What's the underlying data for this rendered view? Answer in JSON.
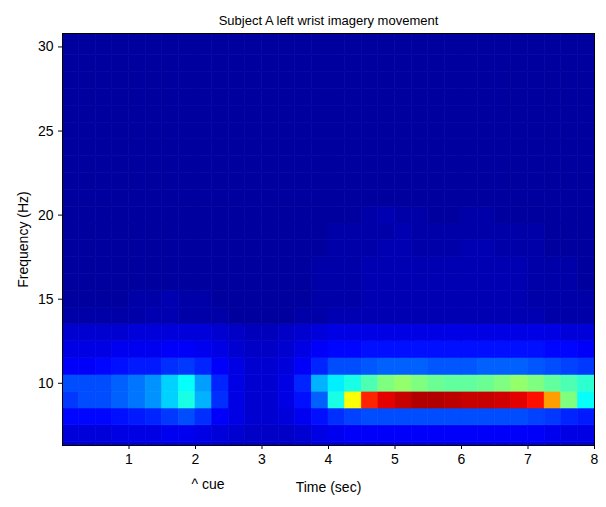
{
  "chart_data": {
    "type": "heatmap",
    "title": "Subject A left wrist imagery movement",
    "x_label": "Time (sec)",
    "y_label": "Frequency (Hz)",
    "xlim": [
      0,
      8
    ],
    "ylim": [
      6.3,
      30.8
    ],
    "xticks": [
      1,
      2,
      3,
      4,
      5,
      6,
      7,
      8
    ],
    "yticks": [
      10,
      15,
      20,
      25,
      30
    ],
    "grid": false,
    "color_range": [
      0,
      1
    ],
    "annotations": [
      {
        "text": "^ cue",
        "x": 2
      }
    ],
    "x": [
      0.125,
      0.375,
      0.625,
      0.875,
      1.125,
      1.375,
      1.625,
      1.875,
      2.125,
      2.375,
      2.625,
      2.875,
      3.125,
      3.375,
      3.625,
      3.875,
      4.125,
      4.375,
      4.625,
      4.875,
      5.125,
      5.375,
      5.625,
      5.875,
      6.125,
      6.375,
      6.625,
      6.875,
      7.125,
      7.375,
      7.625,
      7.875
    ],
    "y": [
      6,
      7,
      8,
      9,
      10,
      11,
      12,
      13,
      14,
      15,
      16,
      17,
      18,
      19,
      20,
      21,
      22,
      23,
      24,
      25,
      26,
      27,
      28,
      29,
      30,
      31
    ],
    "cells": [
      [
        0.07,
        0.07,
        0.07,
        0.07,
        0.08,
        0.08,
        0.08,
        0.08,
        0.08,
        0.07,
        0.06,
        0.06,
        0.06,
        0.06,
        0.07,
        0.08,
        0.08,
        0.09,
        0.09,
        0.09,
        0.09,
        0.09,
        0.09,
        0.09,
        0.09,
        0.09,
        0.09,
        0.09,
        0.09,
        0.08,
        0.08,
        0.08
      ],
      [
        0.09,
        0.09,
        0.09,
        0.1,
        0.1,
        0.1,
        0.11,
        0.11,
        0.1,
        0.09,
        0.08,
        0.07,
        0.07,
        0.07,
        0.08,
        0.1,
        0.11,
        0.12,
        0.12,
        0.12,
        0.12,
        0.12,
        0.12,
        0.12,
        0.12,
        0.12,
        0.12,
        0.12,
        0.12,
        0.11,
        0.1,
        0.1
      ],
      [
        0.13,
        0.13,
        0.13,
        0.14,
        0.15,
        0.16,
        0.18,
        0.2,
        0.17,
        0.12,
        0.1,
        0.08,
        0.08,
        0.09,
        0.11,
        0.14,
        0.17,
        0.19,
        0.2,
        0.2,
        0.2,
        0.2,
        0.2,
        0.2,
        0.2,
        0.2,
        0.2,
        0.2,
        0.19,
        0.18,
        0.16,
        0.15
      ],
      [
        0.18,
        0.2,
        0.2,
        0.22,
        0.24,
        0.27,
        0.33,
        0.4,
        0.3,
        0.17,
        0.1,
        0.08,
        0.08,
        0.1,
        0.14,
        0.22,
        0.4,
        0.62,
        0.84,
        0.9,
        0.93,
        0.95,
        0.95,
        0.94,
        0.93,
        0.93,
        0.92,
        0.9,
        0.86,
        0.72,
        0.5,
        0.38
      ],
      [
        0.2,
        0.2,
        0.2,
        0.22,
        0.24,
        0.27,
        0.33,
        0.38,
        0.28,
        0.16,
        0.1,
        0.08,
        0.08,
        0.1,
        0.16,
        0.3,
        0.36,
        0.4,
        0.45,
        0.5,
        0.52,
        0.5,
        0.48,
        0.47,
        0.47,
        0.48,
        0.5,
        0.52,
        0.5,
        0.47,
        0.45,
        0.42
      ],
      [
        0.12,
        0.12,
        0.13,
        0.14,
        0.15,
        0.15,
        0.17,
        0.18,
        0.16,
        0.12,
        0.1,
        0.08,
        0.08,
        0.09,
        0.12,
        0.16,
        0.2,
        0.2,
        0.21,
        0.22,
        0.22,
        0.22,
        0.21,
        0.21,
        0.21,
        0.22,
        0.22,
        0.22,
        0.21,
        0.2,
        0.19,
        0.18
      ],
      [
        0.1,
        0.1,
        0.1,
        0.11,
        0.11,
        0.11,
        0.12,
        0.12,
        0.11,
        0.1,
        0.08,
        0.07,
        0.07,
        0.08,
        0.1,
        0.12,
        0.13,
        0.13,
        0.14,
        0.14,
        0.14,
        0.14,
        0.14,
        0.14,
        0.14,
        0.14,
        0.14,
        0.14,
        0.14,
        0.13,
        0.13,
        0.12
      ],
      [
        0.08,
        0.08,
        0.08,
        0.08,
        0.09,
        0.09,
        0.09,
        0.09,
        0.09,
        0.08,
        0.07,
        0.06,
        0.06,
        0.07,
        0.08,
        0.09,
        0.1,
        0.1,
        0.1,
        0.1,
        0.1,
        0.1,
        0.1,
        0.1,
        0.1,
        0.1,
        0.1,
        0.1,
        0.1,
        0.1,
        0.09,
        0.09
      ],
      [
        0.04,
        0.04,
        0.04,
        0.04,
        0.04,
        0.05,
        0.05,
        0.04,
        0.04,
        0.04,
        0.03,
        0.03,
        0.03,
        0.03,
        0.04,
        0.04,
        0.05,
        0.05,
        0.05,
        0.05,
        0.05,
        0.05,
        0.05,
        0.05,
        0.05,
        0.05,
        0.05,
        0.05,
        0.05,
        0.04,
        0.04,
        0.04
      ],
      [
        0.03,
        0.03,
        0.03,
        0.03,
        0.04,
        0.04,
        0.05,
        0.04,
        0.04,
        0.03,
        0.03,
        0.03,
        0.03,
        0.03,
        0.03,
        0.04,
        0.04,
        0.04,
        0.05,
        0.05,
        0.05,
        0.05,
        0.05,
        0.05,
        0.05,
        0.05,
        0.05,
        0.05,
        0.04,
        0.04,
        0.04,
        0.04
      ],
      [
        0.03,
        0.03,
        0.03,
        0.03,
        0.03,
        0.03,
        0.03,
        0.03,
        0.03,
        0.03,
        0.03,
        0.03,
        0.03,
        0.03,
        0.03,
        0.04,
        0.04,
        0.04,
        0.05,
        0.05,
        0.05,
        0.05,
        0.05,
        0.05,
        0.05,
        0.05,
        0.05,
        0.05,
        0.04,
        0.04,
        0.04,
        0.03
      ],
      [
        0.03,
        0.03,
        0.03,
        0.03,
        0.03,
        0.03,
        0.03,
        0.03,
        0.03,
        0.03,
        0.03,
        0.03,
        0.03,
        0.03,
        0.03,
        0.04,
        0.04,
        0.04,
        0.05,
        0.05,
        0.05,
        0.05,
        0.05,
        0.05,
        0.05,
        0.05,
        0.05,
        0.05,
        0.04,
        0.04,
        0.04,
        0.03
      ],
      [
        0.03,
        0.03,
        0.03,
        0.03,
        0.03,
        0.03,
        0.03,
        0.03,
        0.03,
        0.03,
        0.03,
        0.03,
        0.03,
        0.03,
        0.03,
        0.03,
        0.04,
        0.04,
        0.04,
        0.05,
        0.05,
        0.04,
        0.04,
        0.04,
        0.05,
        0.05,
        0.04,
        0.04,
        0.04,
        0.03,
        0.03,
        0.03
      ],
      [
        0.03,
        0.03,
        0.03,
        0.03,
        0.03,
        0.03,
        0.03,
        0.03,
        0.03,
        0.03,
        0.03,
        0.03,
        0.03,
        0.03,
        0.03,
        0.03,
        0.04,
        0.04,
        0.04,
        0.04,
        0.05,
        0.04,
        0.04,
        0.04,
        0.04,
        0.04,
        0.04,
        0.04,
        0.04,
        0.03,
        0.03,
        0.03
      ],
      [
        0.03,
        0.03,
        0.03,
        0.03,
        0.03,
        0.03,
        0.03,
        0.03,
        0.03,
        0.03,
        0.03,
        0.03,
        0.03,
        0.03,
        0.03,
        0.03,
        0.03,
        0.03,
        0.04,
        0.05,
        0.04,
        0.04,
        0.03,
        0.03,
        0.04,
        0.04,
        0.03,
        0.03,
        0.03,
        0.03,
        0.03,
        0.03
      ],
      [
        0.03,
        0.03,
        0.03,
        0.03,
        0.03,
        0.03,
        0.03,
        0.03,
        0.03,
        0.03,
        0.03,
        0.03,
        0.03,
        0.03,
        0.03,
        0.03,
        0.03,
        0.03,
        0.03,
        0.03,
        0.03,
        0.03,
        0.03,
        0.03,
        0.03,
        0.03,
        0.03,
        0.03,
        0.03,
        0.03,
        0.03,
        0.03
      ],
      [
        0.03,
        0.03,
        0.03,
        0.03,
        0.03,
        0.03,
        0.03,
        0.03,
        0.03,
        0.03,
        0.03,
        0.03,
        0.03,
        0.03,
        0.03,
        0.03,
        0.03,
        0.03,
        0.03,
        0.03,
        0.03,
        0.03,
        0.03,
        0.03,
        0.03,
        0.03,
        0.03,
        0.03,
        0.03,
        0.03,
        0.03,
        0.03
      ],
      [
        0.03,
        0.03,
        0.03,
        0.03,
        0.03,
        0.03,
        0.03,
        0.03,
        0.03,
        0.03,
        0.03,
        0.03,
        0.03,
        0.03,
        0.03,
        0.03,
        0.03,
        0.03,
        0.03,
        0.03,
        0.03,
        0.03,
        0.03,
        0.03,
        0.03,
        0.03,
        0.03,
        0.03,
        0.03,
        0.03,
        0.03,
        0.03
      ],
      [
        0.03,
        0.03,
        0.03,
        0.03,
        0.03,
        0.03,
        0.03,
        0.03,
        0.03,
        0.03,
        0.03,
        0.03,
        0.03,
        0.03,
        0.03,
        0.03,
        0.03,
        0.03,
        0.03,
        0.03,
        0.03,
        0.03,
        0.03,
        0.03,
        0.03,
        0.03,
        0.03,
        0.03,
        0.03,
        0.03,
        0.03,
        0.03
      ],
      [
        0.03,
        0.03,
        0.03,
        0.03,
        0.03,
        0.03,
        0.03,
        0.03,
        0.03,
        0.03,
        0.03,
        0.03,
        0.03,
        0.03,
        0.03,
        0.03,
        0.03,
        0.03,
        0.03,
        0.03,
        0.03,
        0.03,
        0.03,
        0.03,
        0.03,
        0.03,
        0.03,
        0.03,
        0.03,
        0.03,
        0.03,
        0.03
      ],
      [
        0.03,
        0.03,
        0.03,
        0.03,
        0.03,
        0.03,
        0.03,
        0.03,
        0.03,
        0.03,
        0.03,
        0.03,
        0.03,
        0.03,
        0.03,
        0.03,
        0.03,
        0.03,
        0.03,
        0.03,
        0.03,
        0.03,
        0.03,
        0.03,
        0.03,
        0.03,
        0.03,
        0.03,
        0.03,
        0.03,
        0.03,
        0.03
      ],
      [
        0.03,
        0.03,
        0.03,
        0.03,
        0.03,
        0.03,
        0.03,
        0.03,
        0.03,
        0.03,
        0.03,
        0.03,
        0.03,
        0.03,
        0.03,
        0.03,
        0.03,
        0.03,
        0.03,
        0.03,
        0.03,
        0.03,
        0.03,
        0.03,
        0.03,
        0.03,
        0.03,
        0.03,
        0.03,
        0.03,
        0.03,
        0.03
      ],
      [
        0.03,
        0.03,
        0.03,
        0.03,
        0.03,
        0.03,
        0.03,
        0.03,
        0.03,
        0.03,
        0.03,
        0.03,
        0.03,
        0.03,
        0.03,
        0.03,
        0.03,
        0.03,
        0.03,
        0.03,
        0.03,
        0.03,
        0.03,
        0.03,
        0.03,
        0.03,
        0.03,
        0.03,
        0.03,
        0.03,
        0.03,
        0.03
      ],
      [
        0.03,
        0.03,
        0.03,
        0.03,
        0.03,
        0.03,
        0.03,
        0.03,
        0.03,
        0.03,
        0.03,
        0.03,
        0.03,
        0.03,
        0.03,
        0.03,
        0.03,
        0.03,
        0.03,
        0.03,
        0.03,
        0.03,
        0.03,
        0.03,
        0.03,
        0.03,
        0.03,
        0.03,
        0.03,
        0.03,
        0.03,
        0.03
      ],
      [
        0.03,
        0.03,
        0.03,
        0.03,
        0.03,
        0.03,
        0.03,
        0.03,
        0.03,
        0.03,
        0.03,
        0.03,
        0.03,
        0.03,
        0.03,
        0.03,
        0.03,
        0.03,
        0.03,
        0.03,
        0.03,
        0.03,
        0.03,
        0.03,
        0.03,
        0.03,
        0.03,
        0.03,
        0.03,
        0.03,
        0.03,
        0.03
      ],
      [
        0.03,
        0.03,
        0.03,
        0.03,
        0.03,
        0.03,
        0.03,
        0.03,
        0.03,
        0.03,
        0.03,
        0.03,
        0.03,
        0.03,
        0.03,
        0.03,
        0.03,
        0.03,
        0.03,
        0.03,
        0.03,
        0.03,
        0.03,
        0.03,
        0.03,
        0.03,
        0.03,
        0.03,
        0.03,
        0.03,
        0.03,
        0.03
      ]
    ]
  }
}
